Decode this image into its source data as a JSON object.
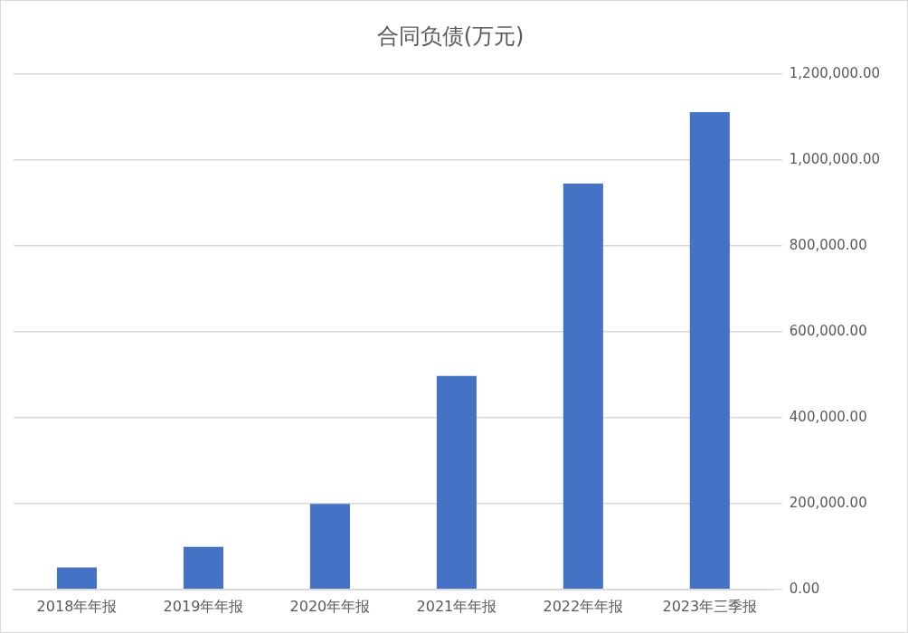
{
  "chart_data": {
    "type": "bar",
    "title": "合同负债(万元)",
    "categories": [
      "2018年年报",
      "2019年年报",
      "2020年年报",
      "2021年年报",
      "2022年年报",
      "2023年三季报"
    ],
    "values": [
      51000,
      99000,
      199000,
      497000,
      945000,
      1111000
    ],
    "color": "#4472c4",
    "ylim": [
      0,
      1200000
    ],
    "yticks": [
      {
        "value": 0,
        "label": "0.00"
      },
      {
        "value": 200000,
        "label": "200,000.00"
      },
      {
        "value": 400000,
        "label": "400,000.00"
      },
      {
        "value": 600000,
        "label": "600,000.00"
      },
      {
        "value": 800000,
        "label": "800,000.00"
      },
      {
        "value": 1000000,
        "label": "1,000,000.00"
      },
      {
        "value": 1200000,
        "label": "1,200,000.00"
      }
    ],
    "grid": "y"
  }
}
